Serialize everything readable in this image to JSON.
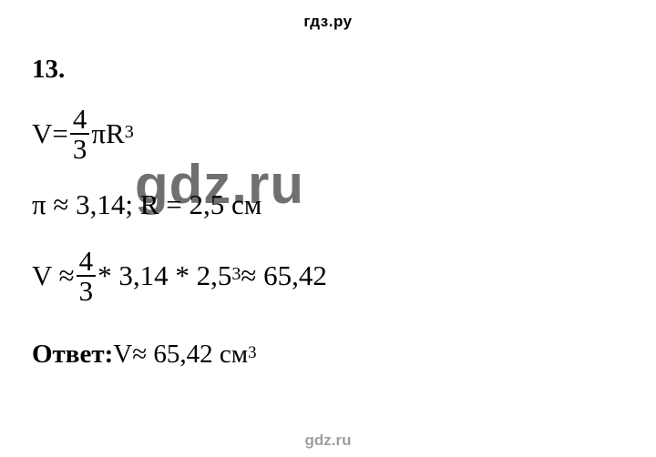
{
  "header": {
    "text": "гдз.ру",
    "fontsize": 17,
    "color": "#000000"
  },
  "problem": {
    "number": "13.",
    "fontsize": 29
  },
  "lines": {
    "formula": {
      "lhs": "V",
      "eq": " = ",
      "frac": {
        "num": "4",
        "den": "3"
      },
      "pi": "π",
      "R": "R",
      "exp": "3",
      "fontsize": 31
    },
    "given": {
      "text": "π ≈ 3,14; R = 2,5 см",
      "fontsize": 31
    },
    "calc": {
      "lhs": "V ≈ ",
      "frac": {
        "num": "4",
        "den": "3"
      },
      "tail_a": " * 3,14 * 2,5",
      "exp": "3",
      "tail_b": " ≈ 65,42",
      "fontsize": 31
    },
    "answer": {
      "label": "Ответ:",
      "value": " V≈ 65,42 см",
      "exp": "3",
      "fontsize": 29
    }
  },
  "spacing": {
    "line_gap": 20,
    "frac_line_extra": 8
  },
  "watermarks": {
    "center": {
      "text": "gdz.ru",
      "fontsize": 60,
      "color": "rgba(0,0,0,0.56)"
    },
    "footer": {
      "text": "gdz.ru",
      "fontsize": 17,
      "color": "rgba(0,0,0,0.38)"
    }
  },
  "colors": {
    "background": "#ffffff",
    "text": "#000000"
  }
}
